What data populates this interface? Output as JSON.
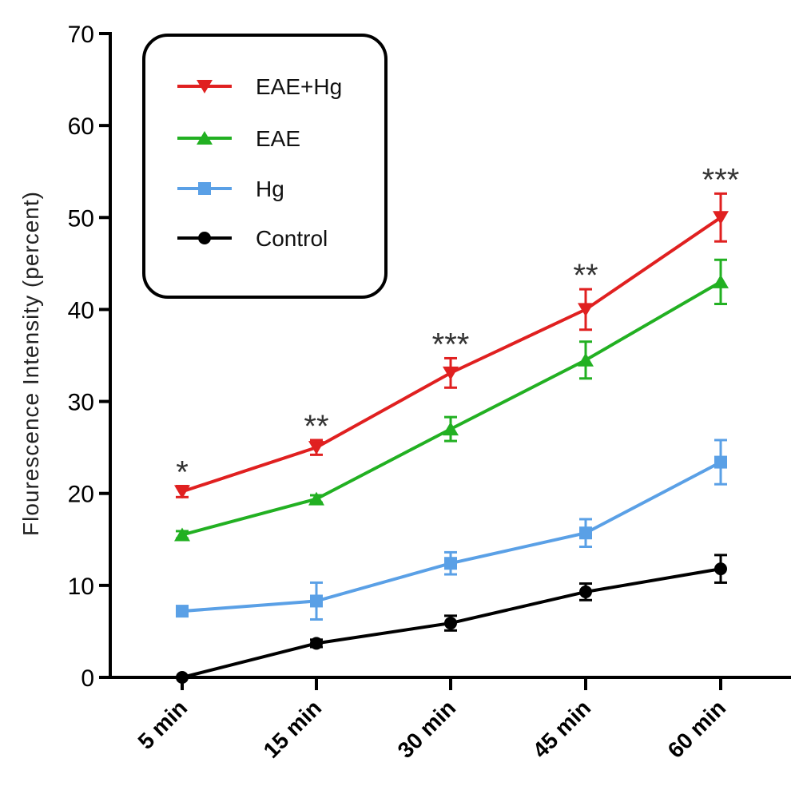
{
  "chart_data": {
    "type": "line",
    "title": "",
    "xlabel": "",
    "ylabel": "Flourescence Intensity (percent)",
    "ylim": [
      0,
      70
    ],
    "yticks": [
      "0",
      "10",
      "20",
      "30",
      "40",
      "50",
      "60",
      "70"
    ],
    "categories": [
      "5 min",
      "15 min",
      "30 min",
      "45 min",
      "60 min"
    ],
    "grid": false,
    "legend_position": "top-left",
    "series": [
      {
        "name": "EAE+Hg",
        "color": "#e02020",
        "marker": "triangle-down",
        "values": [
          20.2,
          25.0,
          33.1,
          40.0,
          50.0
        ],
        "errors": [
          0.6,
          0.8,
          1.6,
          2.2,
          2.6
        ]
      },
      {
        "name": "EAE",
        "color": "#22b022",
        "marker": "triangle-up",
        "values": [
          15.5,
          19.4,
          27.0,
          34.5,
          43.0
        ],
        "errors": [
          0.4,
          0.4,
          1.3,
          2.0,
          2.4
        ]
      },
      {
        "name": "Hg",
        "color": "#5aa0e6",
        "marker": "square",
        "values": [
          7.2,
          8.3,
          12.4,
          15.7,
          23.4
        ],
        "errors": [
          0.3,
          2.0,
          1.2,
          1.5,
          2.4
        ]
      },
      {
        "name": "Control",
        "color": "#000000",
        "marker": "circle",
        "values": [
          0.0,
          3.7,
          5.9,
          9.3,
          11.8
        ],
        "errors": [
          0.2,
          0.4,
          0.8,
          0.9,
          1.5
        ]
      }
    ],
    "annotations": [
      "*",
      "**",
      "***",
      "**",
      "***"
    ]
  }
}
